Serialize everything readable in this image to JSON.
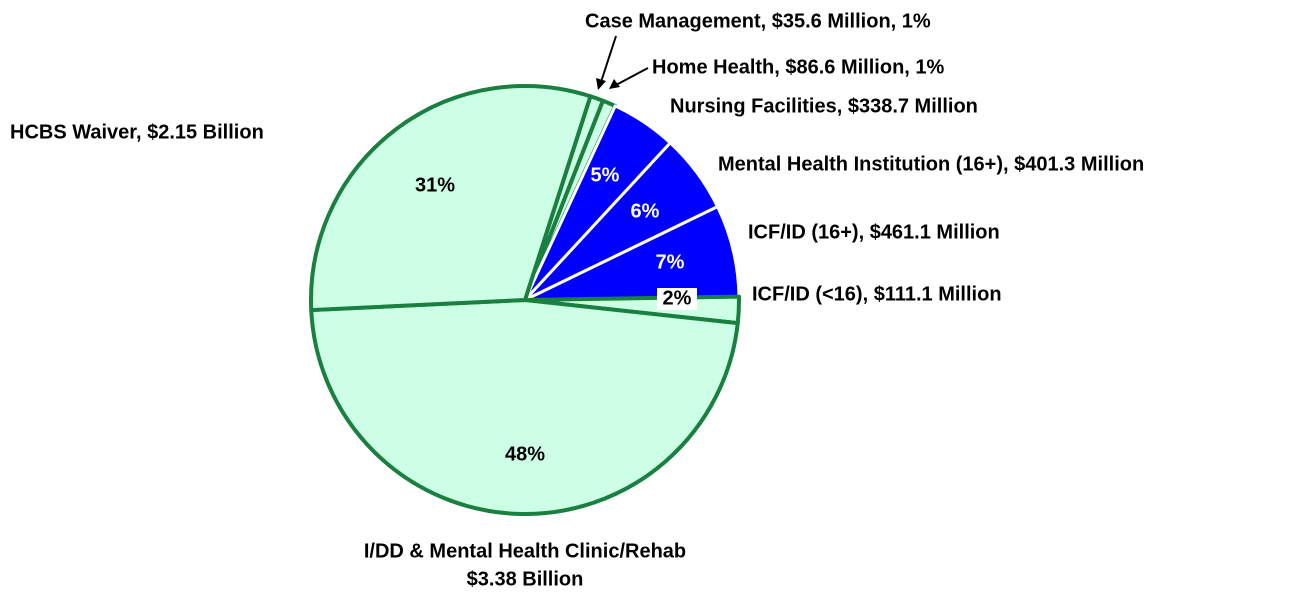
{
  "chart_data": {
    "type": "pie",
    "categories": [
      "Case Management, $35.6 Million, 1%",
      "Home Health, $86.6 Million, 1%",
      "Nursing Facilities, $338.7 Million",
      "Mental Health Institution (16+), $401.3 Million",
      "ICF/ID (16+), $461.1 Million",
      "ICF/ID (<16), $111.1 Million",
      [
        "I/DD & Mental Health Clinic/Rehab",
        "$3.38 Billion"
      ],
      "HCBS Waiver, $2.15 Billion"
    ],
    "values": [
      1,
      1,
      5,
      6,
      7,
      2,
      48,
      31
    ],
    "value_labels": [
      null,
      null,
      "5%",
      "6%",
      "7%",
      "2%",
      "48%",
      "31%"
    ],
    "colors": [
      "#ccffe6",
      "#ccffe6",
      "#0000ff",
      "#0000ff",
      "#0000ff",
      "#ccffe6",
      "#ccffe6",
      "#ccffe6"
    ],
    "edgecolors": [
      "#1a8040",
      "#1a8040",
      "#ffffff",
      "#ffffff",
      "#ffffff",
      "#1a8040",
      "#1a8040",
      "#1a8040"
    ]
  }
}
